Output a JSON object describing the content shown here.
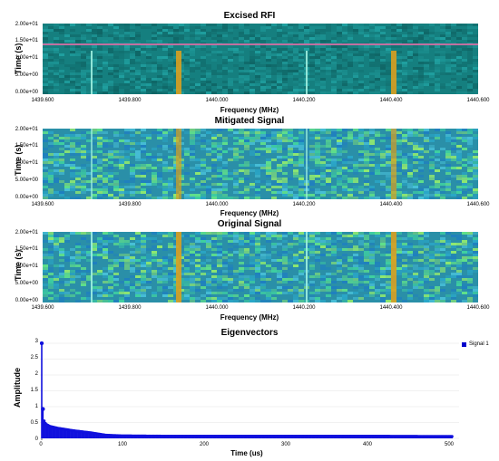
{
  "panels": {
    "excised": {
      "title": "Excised RFI",
      "ylabel": "Time (s)",
      "xlabel": "Frequency (MHz)",
      "yticks": [
        "2.00e+01",
        "1.50e+01",
        "1.00e+01",
        "5.00e+00",
        "0.00e+00"
      ],
      "xticks": [
        "1439.600",
        "1439.800",
        "1440.000",
        "1440.200",
        "1440.400",
        "1440.600"
      ]
    },
    "mitigated": {
      "title": "Mitigated Signal",
      "ylabel": "Time (s)",
      "xlabel": "Frequency (MHz)",
      "yticks": [
        "2.00e+01",
        "1.50e+01",
        "1.00e+01",
        "5.00e+00",
        "0.00e+00"
      ],
      "xticks": [
        "1439.600",
        "1439.800",
        "1440.000",
        "1440.200",
        "1440.400",
        "1440.600"
      ]
    },
    "original": {
      "title": "Original Signal",
      "ylabel": "Time (s)",
      "xlabel": "Frequency (MHz)",
      "yticks": [
        "2.00e+01",
        "1.50e+01",
        "1.00e+01",
        "5.00e+00",
        "0.00e+00"
      ],
      "xticks": [
        "1439.600",
        "1439.800",
        "1440.000",
        "1440.200",
        "1440.400",
        "1440.600"
      ]
    },
    "eigen": {
      "title": "Eigenvectors",
      "ylabel": "Amplitude",
      "xlabel": "Time (us)",
      "yticks": [
        "3",
        "2.5",
        "2",
        "1.5",
        "1",
        "0.5",
        "0"
      ],
      "xticks": [
        "0",
        "100",
        "200",
        "300",
        "400",
        "500"
      ],
      "legend": "Signal 1"
    }
  },
  "colors": {
    "stem": "#1010dd",
    "spec_bg": "#1a8c8c",
    "rfi_line": "#d9a020"
  },
  "chart_data": {
    "type": "scatter",
    "title": "Eigenvectors",
    "xlabel": "Time (us)",
    "ylabel": "Amplitude",
    "xlim": [
      0,
      512
    ],
    "ylim": [
      0,
      3
    ],
    "series": [
      {
        "name": "Signal 1",
        "x": [
          0,
          1,
          2,
          5,
          10,
          20,
          30,
          40,
          50,
          60,
          70,
          80,
          100,
          150,
          200,
          300,
          400,
          500,
          510
        ],
        "values": [
          3.0,
          1.25,
          0.6,
          0.45,
          0.38,
          0.32,
          0.28,
          0.24,
          0.21,
          0.18,
          0.14,
          0.1,
          0.08,
          0.07,
          0.07,
          0.07,
          0.07,
          0.06,
          0.06
        ]
      }
    ]
  }
}
